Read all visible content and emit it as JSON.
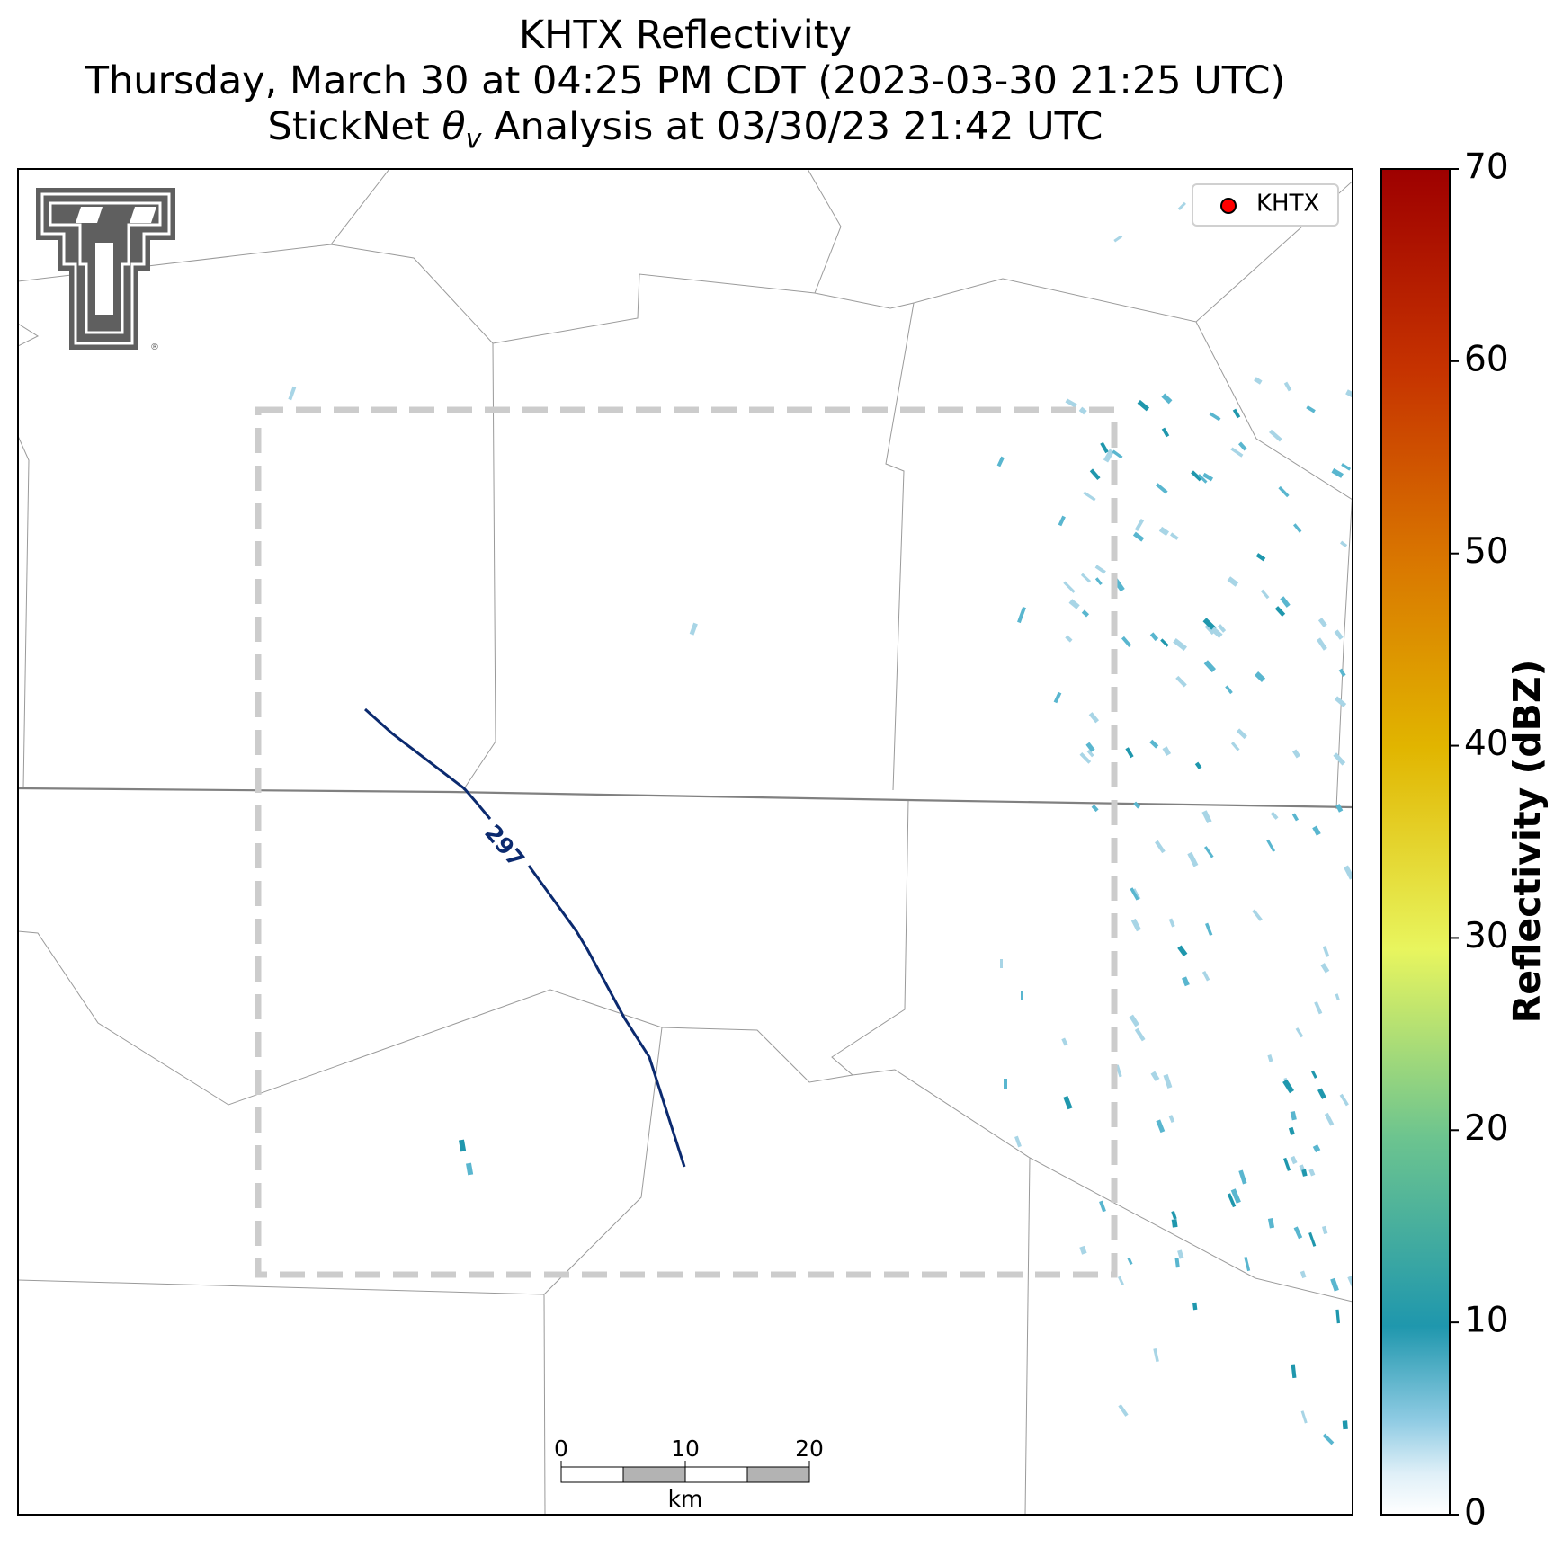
{
  "title": {
    "line1": "KHTX Reflectivity",
    "line2": "Thursday, March 30 at 04:25 PM CDT (2023-03-30 21:25 UTC)",
    "line3_prefix": "StickNet ",
    "line3_theta": "θ",
    "line3_sub": "v",
    "line3_suffix": " Analysis at 03/30/23 21:42 UTC"
  },
  "legend": {
    "label": "KHTX",
    "marker_color": "#ff0000"
  },
  "contour": {
    "label": "297",
    "color": "#0b2a6f"
  },
  "scale_bar": {
    "ticks": [
      "0",
      "10",
      "20"
    ],
    "unit": "km"
  },
  "colorbar": {
    "label": "Reflectivity (dBZ)",
    "ticks": [
      "0",
      "10",
      "20",
      "30",
      "40",
      "50",
      "60",
      "70"
    ],
    "min": 0,
    "max": 70
  },
  "logo": {
    "name": "Texas Tech double-T",
    "mark": "®"
  },
  "colors": {
    "analysis_box": "#cccccc",
    "county_lines": "#9a9a9a",
    "state_line": "#808080",
    "echo_light": "#a8d5e6",
    "echo_mid": "#59b6cf",
    "echo_strong": "#1f97ad"
  }
}
